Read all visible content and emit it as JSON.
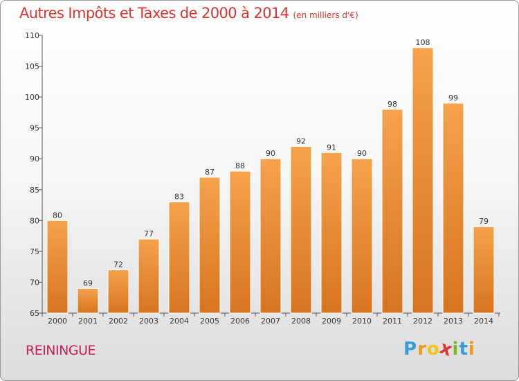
{
  "title": {
    "main": "Autres Impôts et Taxes de 2000 à 2014",
    "unit": "(en milliers d'€)"
  },
  "footer": {
    "city": "REININGUE",
    "logo_letters": [
      "P",
      "r",
      "o",
      "x",
      "i",
      "t",
      "i"
    ]
  },
  "colors": {
    "bar_light": "#f5a24b",
    "bar_dark": "#d8741f",
    "title": "#e0322f",
    "city": "#c8205a",
    "logo": [
      "#3a9bd9",
      "#f09a1a",
      "#f5c218",
      "#e3342f",
      "#7ab829",
      "#3a9bd9",
      "#f09a1a"
    ]
  },
  "chart_data": {
    "type": "bar",
    "title": "Autres Impôts et Taxes de 2000 à 2014",
    "subtitle": "(en milliers d'€)",
    "categories": [
      "2000",
      "2001",
      "2002",
      "2003",
      "2004",
      "2005",
      "2006",
      "2007",
      "2008",
      "2009",
      "2010",
      "2011",
      "2012",
      "2013",
      "2014"
    ],
    "values": [
      80,
      69,
      72,
      77,
      83,
      87,
      88,
      90,
      92,
      91,
      90,
      98,
      108,
      99,
      79
    ],
    "ylim": [
      65,
      110
    ],
    "yticks": [
      65,
      70,
      75,
      80,
      85,
      90,
      95,
      100,
      105,
      110
    ],
    "grid": false,
    "legend": "none"
  }
}
